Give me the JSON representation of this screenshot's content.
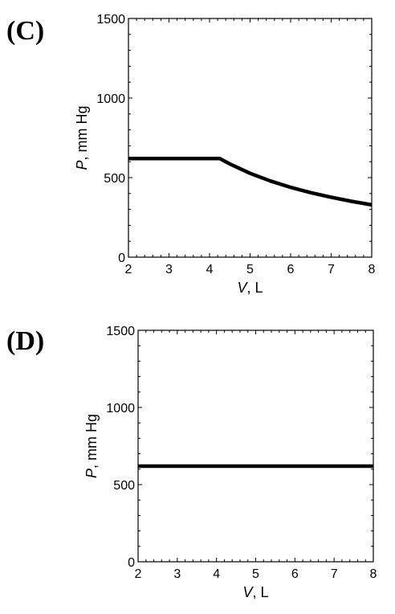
{
  "chart_data": [
    {
      "type": "line",
      "panel_label": "(C)",
      "xlabel_italic": "V",
      "xlabel_rest": ", L",
      "ylabel_italic": "P",
      "ylabel_rest": ", mm Hg",
      "xlim": [
        2,
        8
      ],
      "ylim": [
        0,
        1500
      ],
      "x_ticks": [
        2,
        3,
        4,
        5,
        6,
        7,
        8
      ],
      "y_ticks": [
        0,
        500,
        1000,
        1500
      ],
      "grid": false,
      "series": [
        {
          "x": [
            2,
            2.5,
            3,
            3.5,
            4,
            4.25,
            4.5,
            5,
            5.5,
            6,
            6.5,
            7,
            7.5,
            8
          ],
          "y": [
            620,
            620,
            620,
            620,
            620,
            620,
            586,
            527,
            479,
            439,
            405,
            377,
            351,
            329
          ]
        }
      ]
    },
    {
      "type": "line",
      "panel_label": "(D)",
      "xlabel_italic": "V",
      "xlabel_rest": ", L",
      "ylabel_italic": "P",
      "ylabel_rest": ", mm Hg",
      "xlim": [
        2,
        8
      ],
      "ylim": [
        0,
        1500
      ],
      "x_ticks": [
        2,
        3,
        4,
        5,
        6,
        7,
        8
      ],
      "y_ticks": [
        0,
        500,
        1000,
        1500
      ],
      "grid": false,
      "series": [
        {
          "x": [
            2,
            8
          ],
          "y": [
            620,
            620
          ]
        }
      ]
    }
  ]
}
